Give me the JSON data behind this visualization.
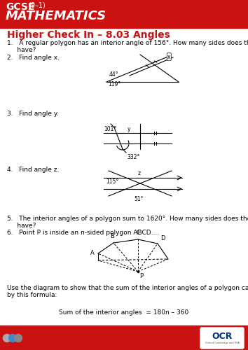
{
  "title_bg_color": "#CC1111",
  "subtitle": "Higher Check In – 8.03 Angles",
  "subtitle_color": "#CC1111",
  "q1": "1.   A regular polygon has an interior angle of 156°. How many sides does the polygon\n     have?",
  "q2": "2.   Find angle x.",
  "q3": "3.   Find angle y.",
  "q4": "4.   Find angle z.",
  "q5": "5.   The interior angles of a polygon sum to 1620°. How many sides does the polygon\n     have?",
  "q6": "6.   Point P is inside an n-sided polygon ABCD….",
  "q6b": "Use the diagram to show that the sum of the interior angles of a polygon can be given\nby this formula:",
  "formula": "Sum of the interior angles  = 180n – 360",
  "footer_color": "#CC1111",
  "bg_color": "#ffffff"
}
